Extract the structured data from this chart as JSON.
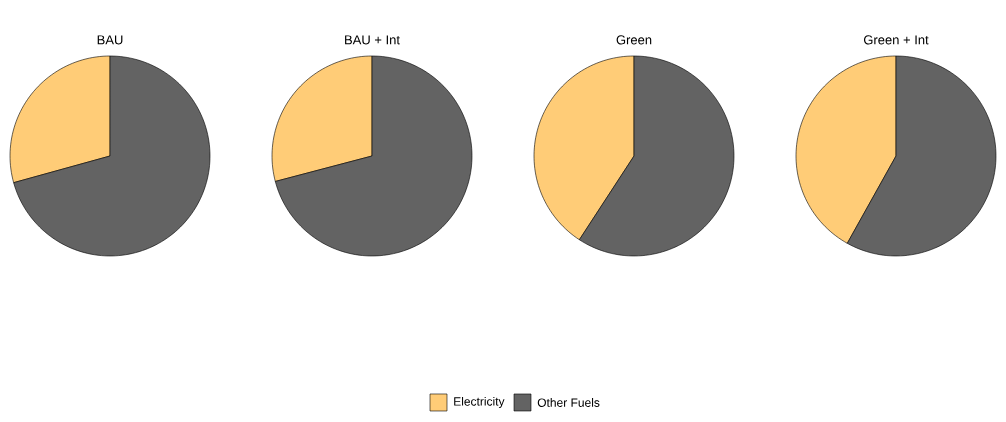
{
  "chart_data": [
    {
      "type": "pie",
      "title": "BAU",
      "categories": [
        "Electricity",
        "Other Fuels"
      ],
      "values": [
        29.3,
        70.7
      ],
      "colors": [
        "#ffcc77",
        "#636363"
      ],
      "legend": "bottom"
    },
    {
      "type": "pie",
      "title": "BAU + Int",
      "categories": [
        null,
        null
      ],
      "values": [
        29.1,
        70.9
      ],
      "colors": [
        "#ffcc77",
        "#636363"
      ]
    },
    {
      "type": "pie",
      "title": "Green",
      "categories": [
        null,
        null
      ],
      "values": [
        40.8,
        59.2
      ],
      "colors": [
        "#ffcc77",
        "#636363"
      ]
    },
    {
      "type": "pie",
      "title": "Green + Int",
      "categories": [
        null,
        null
      ],
      "values": [
        41.9,
        58.1
      ],
      "colors": [
        "#ffcc77",
        "#636363"
      ]
    }
  ]
}
